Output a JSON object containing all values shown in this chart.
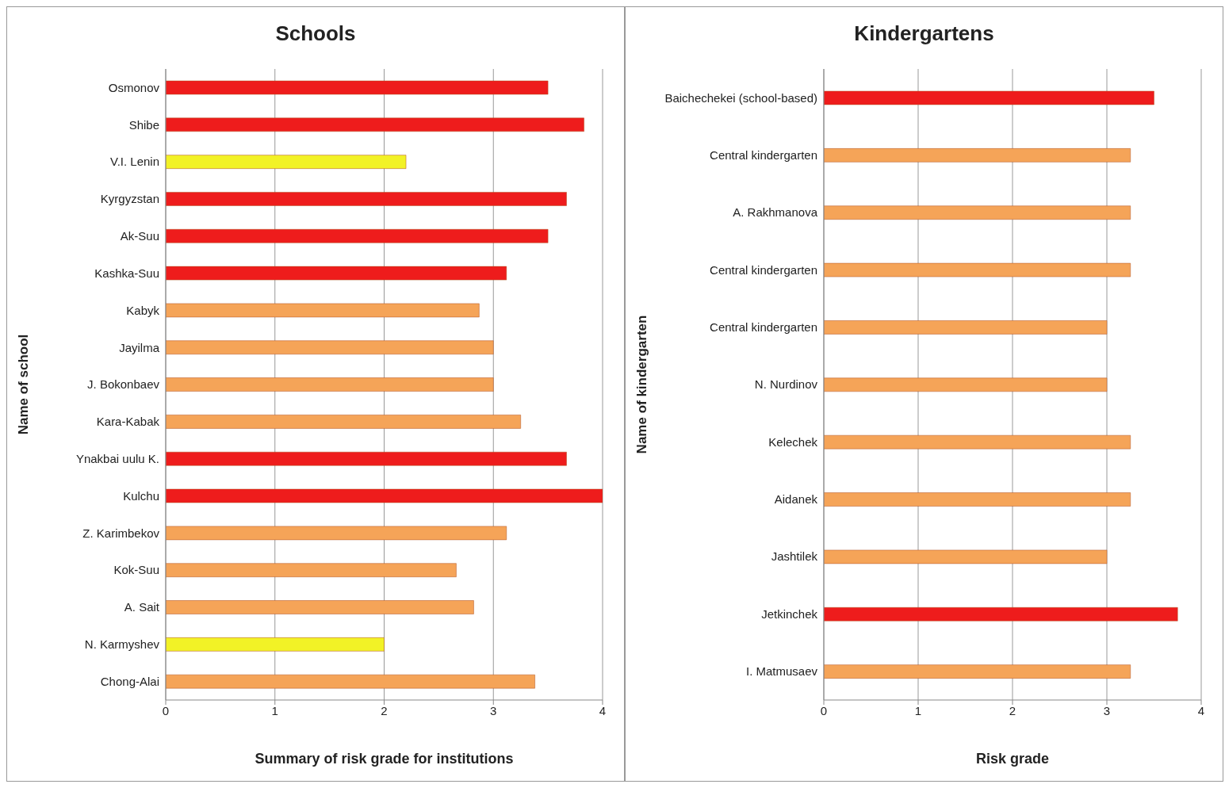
{
  "chart_data": [
    {
      "type": "bar",
      "orientation": "horizontal",
      "title": "Schools",
      "xlabel": "Summary of risk grade for institutions",
      "ylabel": "Name of school",
      "categories": [
        "Osmonov",
        "Shibe",
        "V.I. Lenin",
        "Kyrgyzstan",
        "Ak-Suu",
        "Kashka-Suu",
        "Kabyk",
        "Jayilma",
        "J. Bokonbaev",
        "Kara-Kabak",
        "Ynakbai uulu K.",
        "Kulchu",
        "Z. Karimbekov",
        "Kok-Suu",
        "A. Sait",
        "N. Karmyshev",
        "Chong-Alai"
      ],
      "values": [
        3.5,
        3.83,
        2.2,
        3.67,
        3.5,
        3.12,
        2.87,
        3.0,
        3.0,
        3.25,
        3.67,
        4.0,
        3.12,
        2.66,
        2.82,
        2.0,
        3.38
      ],
      "colors": [
        "#ee1c1c",
        "#ee1c1c",
        "#f2f226",
        "#ee1c1c",
        "#ee1c1c",
        "#ee1c1c",
        "#f5a458",
        "#f5a458",
        "#f5a458",
        "#f5a458",
        "#ee1c1c",
        "#ee1c1c",
        "#f5a458",
        "#f5a458",
        "#f5a458",
        "#f2f226",
        "#f5a458"
      ],
      "xlim": [
        0,
        4
      ],
      "xticks": [
        0,
        1,
        2,
        3,
        4
      ],
      "grid": "x"
    },
    {
      "type": "bar",
      "orientation": "horizontal",
      "title": "Kindergartens",
      "xlabel": "Risk grade",
      "ylabel": "Name of kindergarten",
      "categories": [
        "Baichechekei (school-based)",
        "Central kindergarten",
        "A. Rakhmanova",
        "Central kindergarten",
        "Central kindergarten",
        "N. Nurdinov",
        "Kelechek",
        "Aidanek",
        "Jashtilek",
        "Jetkinchek",
        "I. Matmusaev"
      ],
      "values": [
        3.5,
        3.25,
        3.25,
        3.25,
        3.0,
        3.0,
        3.25,
        3.25,
        3.0,
        3.75,
        3.25
      ],
      "colors": [
        "#ee1c1c",
        "#f5a458",
        "#f5a458",
        "#f5a458",
        "#f5a458",
        "#f5a458",
        "#f5a458",
        "#f5a458",
        "#f5a458",
        "#ee1c1c",
        "#f5a458"
      ],
      "xlim": [
        0,
        4
      ],
      "xticks": [
        0,
        1,
        2,
        3,
        4
      ],
      "grid": "x"
    }
  ]
}
